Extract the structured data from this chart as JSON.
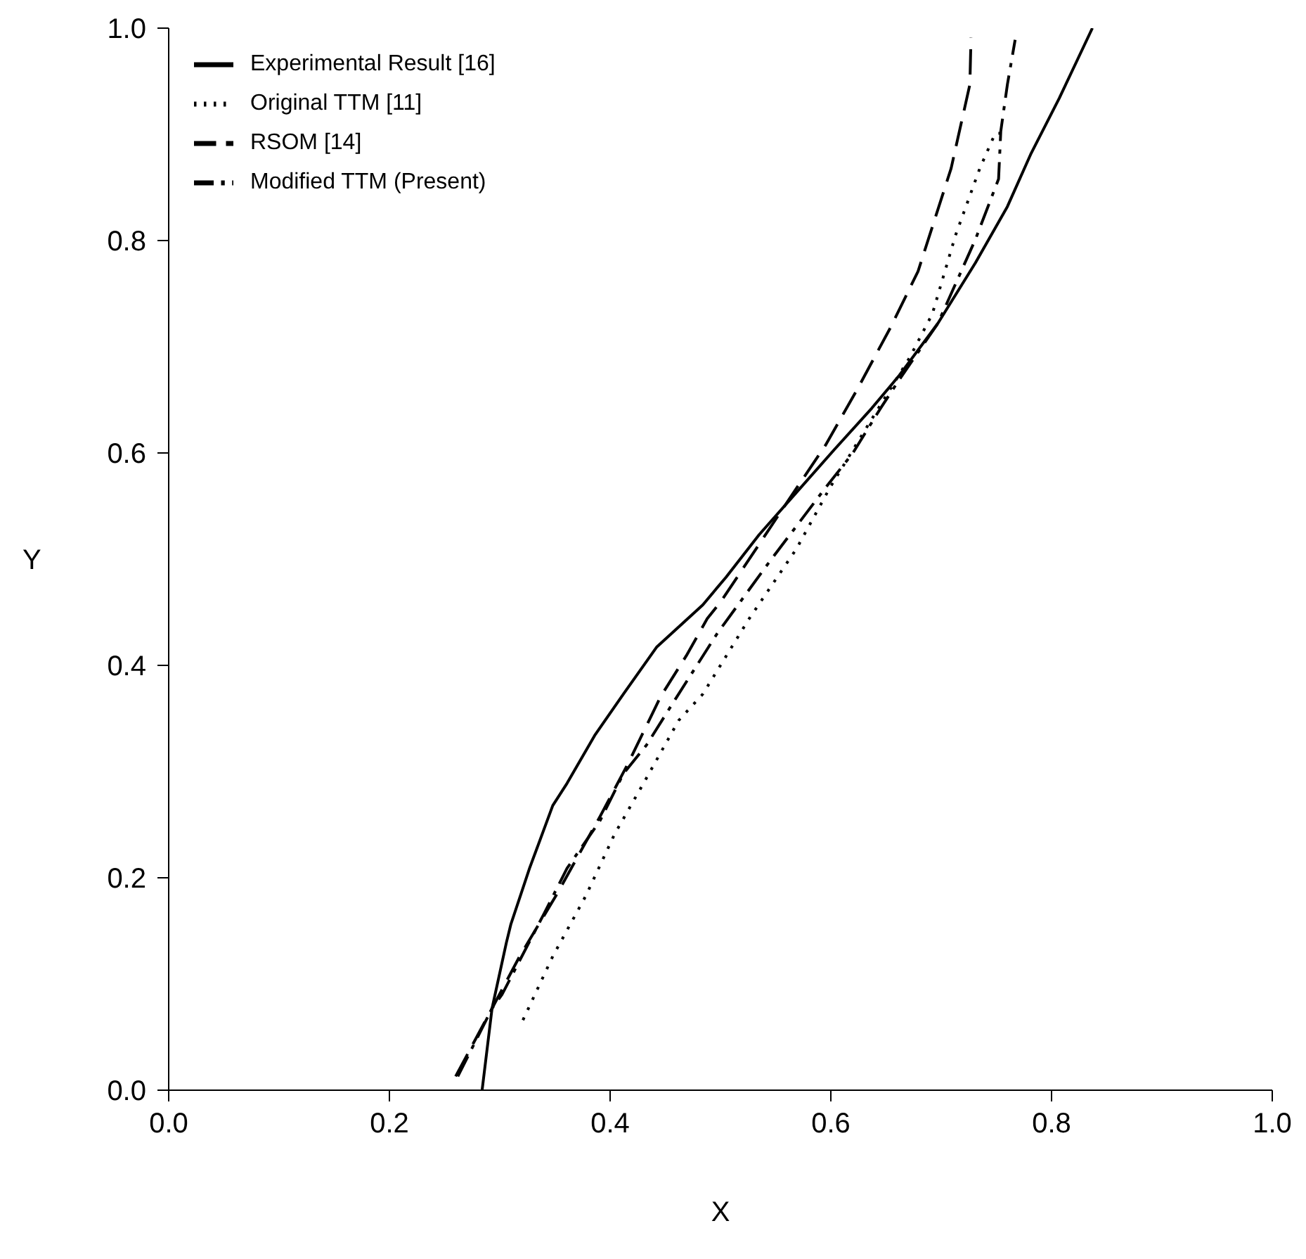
{
  "chart_data": {
    "type": "line",
    "xlabel": "X",
    "ylabel": "Y",
    "xlim": [
      0,
      1
    ],
    "ylim": [
      0,
      1
    ],
    "xticks": [
      {
        "value": 0,
        "label": "0.0"
      },
      {
        "value": 0.2,
        "label": "0.2"
      },
      {
        "value": 0.4,
        "label": "0.4"
      },
      {
        "value": 0.6,
        "label": "0.6"
      },
      {
        "value": 0.8,
        "label": "0.8"
      },
      {
        "value": 1,
        "label": "1.0"
      }
    ],
    "yticks": [
      {
        "value": 0,
        "label": "0.0"
      },
      {
        "value": 0.2,
        "label": "0.2"
      },
      {
        "value": 0.4,
        "label": "0.4"
      },
      {
        "value": 0.6,
        "label": "0.6"
      },
      {
        "value": 0.8,
        "label": "0.8"
      },
      {
        "value": 1,
        "label": "1.0"
      }
    ],
    "grid": false,
    "legend": "top left",
    "marker": "none",
    "series": [
      {
        "name": "Experimental Result [16]",
        "color": "#000000",
        "line_style": "solid",
        "x": [
          0.284,
          0.293,
          0.306,
          0.31,
          0.327,
          0.348,
          0.361,
          0.386,
          0.412,
          0.442,
          0.484,
          0.505,
          0.535,
          0.569,
          0.603,
          0.637,
          0.662,
          0.697,
          0.731,
          0.76,
          0.781,
          0.807,
          0.837
        ],
        "values": [
          0,
          0.077,
          0.139,
          0.156,
          0.209,
          0.268,
          0.289,
          0.334,
          0.373,
          0.417,
          0.457,
          0.483,
          0.523,
          0.563,
          0.603,
          0.642,
          0.673,
          0.722,
          0.779,
          0.832,
          0.881,
          0.934,
          1.0
        ]
      },
      {
        "name": "Original TTM [11]",
        "color": "#000000",
        "line_style": "dotted",
        "x": [
          0.321,
          0.348,
          0.378,
          0.404,
          0.433,
          0.462,
          0.484,
          0.526,
          0.569,
          0.599,
          0.633,
          0.671,
          0.692,
          0.713,
          0.735,
          0.749,
          0.755
        ],
        "values": [
          0.066,
          0.126,
          0.183,
          0.241,
          0.294,
          0.348,
          0.373,
          0.444,
          0.51,
          0.567,
          0.625,
          0.689,
          0.731,
          0.805,
          0.868,
          0.901,
          0.901
        ]
      },
      {
        "name": "RSOM [14]",
        "color": "#000000",
        "line_style": "dashed",
        "x": [
          0.26,
          0.293,
          0.318,
          0.352,
          0.391,
          0.416,
          0.446,
          0.469,
          0.488,
          0.501,
          0.535,
          0.569,
          0.595,
          0.624,
          0.654,
          0.679,
          0.709,
          0.726,
          0.727
        ],
        "values": [
          0.013,
          0.077,
          0.126,
          0.185,
          0.258,
          0.307,
          0.371,
          0.409,
          0.444,
          0.461,
          0.514,
          0.567,
          0.607,
          0.66,
          0.718,
          0.771,
          0.868,
          0.947,
          0.991
        ]
      },
      {
        "name": "Modified TTM (Present)",
        "color": "#000000",
        "line_style": "dashdot",
        "x": [
          0.262,
          0.293,
          0.302,
          0.34,
          0.361,
          0.391,
          0.412,
          0.433,
          0.459,
          0.497,
          0.544,
          0.595,
          0.62,
          0.645,
          0.662,
          0.697,
          0.731,
          0.752,
          0.754,
          0.76,
          0.767
        ],
        "values": [
          0.013,
          0.077,
          0.09,
          0.166,
          0.209,
          0.254,
          0.298,
          0.325,
          0.368,
          0.43,
          0.497,
          0.567,
          0.6,
          0.642,
          0.669,
          0.722,
          0.801,
          0.858,
          0.903,
          0.947,
          0.989
        ]
      }
    ]
  }
}
